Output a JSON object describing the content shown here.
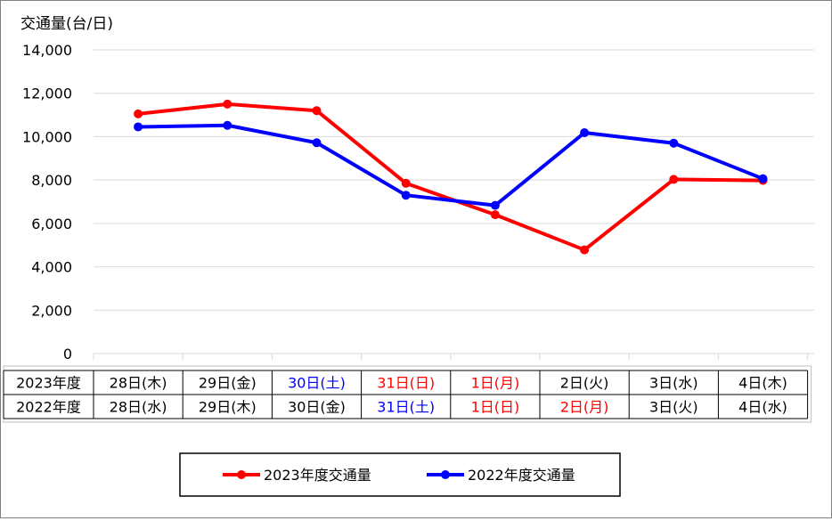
{
  "chart_data": {
    "type": "line",
    "ylabel": "交通量(台/日)",
    "ylim": [
      0,
      14000
    ],
    "yticks": [
      0,
      2000,
      4000,
      6000,
      8000,
      10000,
      12000,
      14000
    ],
    "ytick_labels": [
      "0",
      "2,000",
      "4,000",
      "6,000",
      "8,000",
      "10,000",
      "12,000",
      "14,000"
    ],
    "grid": true,
    "legend_position": "bottom",
    "table_rows": [
      {
        "label": "2023年度",
        "cells": [
          {
            "text": "28日(木)",
            "color": "#000000"
          },
          {
            "text": "29日(金)",
            "color": "#000000"
          },
          {
            "text": "30日(土)",
            "color": "#0000ff"
          },
          {
            "text": "31日(日)",
            "color": "#ff0000"
          },
          {
            "text": "1日(月)",
            "color": "#ff0000"
          },
          {
            "text": "2日(火)",
            "color": "#000000"
          },
          {
            "text": "3日(水)",
            "color": "#000000"
          },
          {
            "text": "4日(木)",
            "color": "#000000"
          }
        ]
      },
      {
        "label": "2022年度",
        "cells": [
          {
            "text": "28日(水)",
            "color": "#000000"
          },
          {
            "text": "29日(木)",
            "color": "#000000"
          },
          {
            "text": "30日(金)",
            "color": "#000000"
          },
          {
            "text": "31日(土)",
            "color": "#0000ff"
          },
          {
            "text": "1日(日)",
            "color": "#ff0000"
          },
          {
            "text": "2日(月)",
            "color": "#ff0000"
          },
          {
            "text": "3日(火)",
            "color": "#000000"
          },
          {
            "text": "4日(水)",
            "color": "#000000"
          }
        ]
      }
    ],
    "series": [
      {
        "name": "2023年度交通量",
        "color": "#ff0000",
        "values": [
          11050,
          11500,
          11200,
          7850,
          6400,
          4780,
          8030,
          7980
        ]
      },
      {
        "name": "2022年度交通量",
        "color": "#0000ff",
        "values": [
          10450,
          10520,
          9720,
          7300,
          6830,
          10180,
          9700,
          8060
        ]
      }
    ]
  }
}
